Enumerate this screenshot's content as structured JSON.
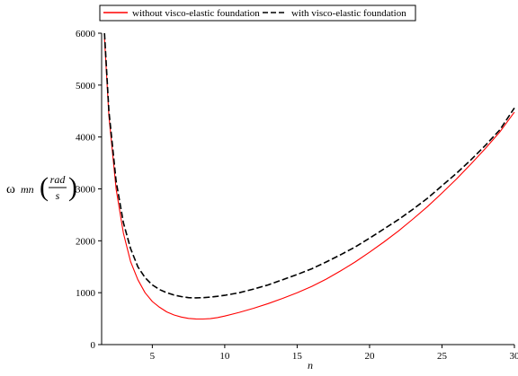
{
  "chart_data": {
    "type": "line",
    "xlabel": "n",
    "ylabel": {
      "omega": "ω",
      "sub": "mn",
      "numerator": "rad",
      "denominator": "s"
    },
    "xlim": [
      1.5,
      30
    ],
    "ylim": [
      0,
      6000
    ],
    "xticks": [
      5,
      10,
      15,
      20,
      25,
      30
    ],
    "yticks": [
      0,
      1000,
      2000,
      3000,
      4000,
      5000,
      6000
    ],
    "grid": false,
    "legend_position": "top",
    "series": [
      {
        "name": "without visco-elastic foundation",
        "color": "#ff0000",
        "style": "solid",
        "x": [
          1.7,
          2,
          2.5,
          3,
          3.5,
          4,
          4.5,
          5,
          5.5,
          6,
          6.5,
          7,
          7.5,
          8,
          8.5,
          9,
          9.5,
          10,
          11,
          12,
          13,
          14,
          15,
          16,
          17,
          18,
          19,
          20,
          21,
          22,
          23,
          24,
          25,
          26,
          27,
          28,
          29,
          30
        ],
        "y": [
          5900,
          4400,
          3000,
          2150,
          1600,
          1250,
          1000,
          830,
          720,
          630,
          570,
          530,
          505,
          495,
          492,
          500,
          520,
          550,
          620,
          700,
          790,
          890,
          1000,
          1120,
          1260,
          1420,
          1590,
          1780,
          1980,
          2190,
          2420,
          2660,
          2920,
          3190,
          3480,
          3780,
          4100,
          4480
        ]
      },
      {
        "name": "with visco-elastic foundation",
        "color": "#000000",
        "style": "dashed",
        "x": [
          1.7,
          2,
          2.5,
          3,
          3.5,
          4,
          4.5,
          5,
          5.5,
          6,
          6.5,
          7,
          7.5,
          8,
          8.5,
          9,
          9.5,
          10,
          11,
          12,
          13,
          14,
          15,
          16,
          17,
          18,
          19,
          20,
          21,
          22,
          23,
          24,
          25,
          26,
          27,
          28,
          29,
          30
        ],
        "y": [
          6000,
          4500,
          3150,
          2350,
          1850,
          1500,
          1290,
          1150,
          1060,
          1000,
          955,
          925,
          905,
          900,
          905,
          915,
          930,
          950,
          1000,
          1070,
          1150,
          1250,
          1350,
          1460,
          1590,
          1730,
          1880,
          2050,
          2230,
          2410,
          2610,
          2820,
          3060,
          3300,
          3560,
          3840,
          4140,
          4560
        ]
      }
    ]
  }
}
